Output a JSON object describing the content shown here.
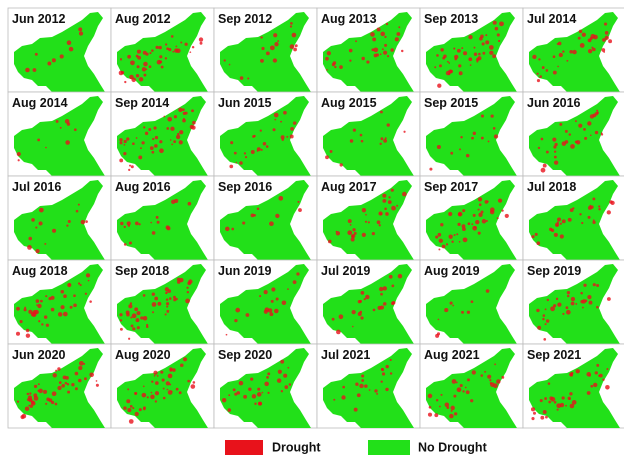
{
  "panels": [
    "Jun 2012",
    "Aug 2012",
    "Sep 2012",
    "Aug 2013",
    "Sep 2013",
    "Jul 2014",
    "Aug 2014",
    "Sep 2014",
    "Jun 2015",
    "Aug 2015",
    "Sep 2015",
    "Jun 2016",
    "Jul 2016",
    "Aug 2016",
    "Sep 2016",
    "Aug 2017",
    "Sep 2017",
    "Jul 2018",
    "Aug 2018",
    "Sep 2018",
    "Jun 2019",
    "Jul 2019",
    "Aug 2019",
    "Sep 2019",
    "Jun 2020",
    "Aug 2020",
    "Sep 2020",
    "Jul 2021",
    "Aug 2021",
    "Sep 2021"
  ],
  "legend": [
    {
      "label": "Drought",
      "color": "#e8121b"
    },
    {
      "label": "No Drought",
      "color": "#22e019"
    }
  ]
}
